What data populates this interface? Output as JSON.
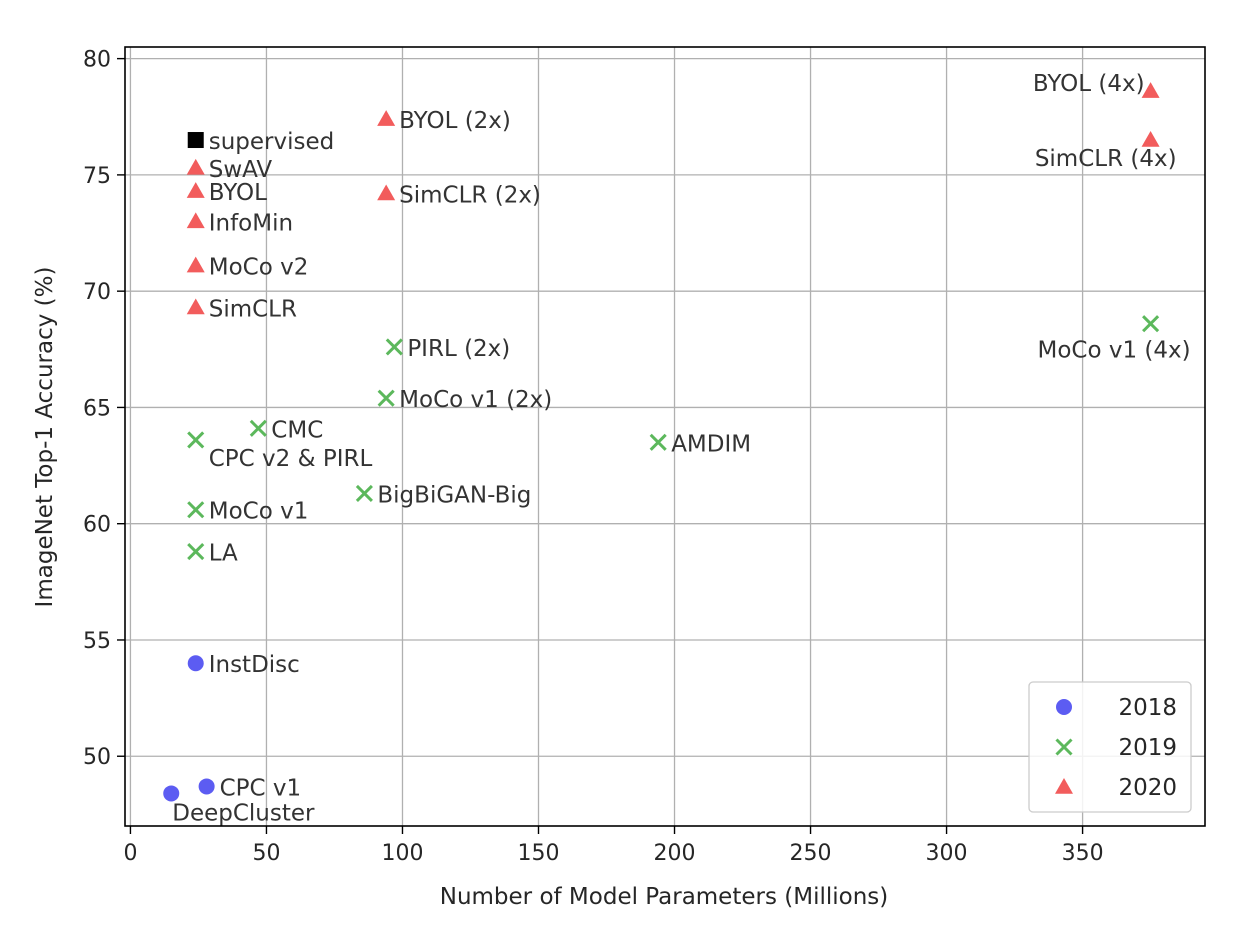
{
  "chart_data": {
    "type": "scatter",
    "title": "",
    "xlabel": "Number of Model Parameters (Millions)",
    "ylabel": "ImageNet Top-1 Accuracy (%)",
    "xlim": [
      -2,
      395
    ],
    "ylim": [
      47,
      80.5
    ],
    "xticks": [
      0,
      50,
      100,
      150,
      200,
      250,
      300,
      350
    ],
    "yticks": [
      50,
      55,
      60,
      65,
      70,
      75,
      80
    ],
    "grid": true,
    "legend_position": "bottom-right",
    "series": [
      {
        "name": "2018",
        "marker": "circle",
        "color": "#4040f0",
        "points": [
          {
            "x": 24,
            "y": 54.0,
            "label": "InstDisc"
          },
          {
            "x": 28,
            "y": 48.7,
            "label": "CPC v1"
          },
          {
            "x": 15,
            "y": 48.4,
            "label": "DeepCluster"
          }
        ]
      },
      {
        "name": "2019",
        "marker": "x",
        "color": "#5cb85c",
        "points": [
          {
            "x": 24,
            "y": 63.6,
            "label": "CPC v2 & PIRL"
          },
          {
            "x": 24,
            "y": 60.6,
            "label": "MoCo v1"
          },
          {
            "x": 24,
            "y": 58.8,
            "label": "LA"
          },
          {
            "x": 47,
            "y": 64.1,
            "label": "CMC"
          },
          {
            "x": 86,
            "y": 61.3,
            "label": "BigBiGAN-Big"
          },
          {
            "x": 94,
            "y": 65.4,
            "label": "MoCo v1 (2x)"
          },
          {
            "x": 97,
            "y": 67.6,
            "label": "PIRL (2x)"
          },
          {
            "x": 194,
            "y": 63.5,
            "label": "AMDIM"
          },
          {
            "x": 375,
            "y": 68.6,
            "label": "MoCo v1 (4x)"
          }
        ]
      },
      {
        "name": "2020",
        "marker": "triangle",
        "color": "#f04040",
        "points": [
          {
            "x": 24,
            "y": 75.3,
            "label": "SwAV"
          },
          {
            "x": 24,
            "y": 74.3,
            "label": "BYOL"
          },
          {
            "x": 24,
            "y": 73.0,
            "label": "InfoMin"
          },
          {
            "x": 24,
            "y": 71.1,
            "label": "MoCo v2"
          },
          {
            "x": 24,
            "y": 69.3,
            "label": "SimCLR"
          },
          {
            "x": 94,
            "y": 77.4,
            "label": "BYOL (2x)"
          },
          {
            "x": 94,
            "y": 74.2,
            "label": "SimCLR (2x)"
          },
          {
            "x": 375,
            "y": 78.6,
            "label": "BYOL (4x)"
          },
          {
            "x": 375,
            "y": 76.5,
            "label": "SimCLR (4x)"
          }
        ]
      }
    ],
    "reference_point": {
      "x": 24,
      "y": 76.5,
      "label": "supervised",
      "marker": "square",
      "color": "#000000"
    }
  }
}
